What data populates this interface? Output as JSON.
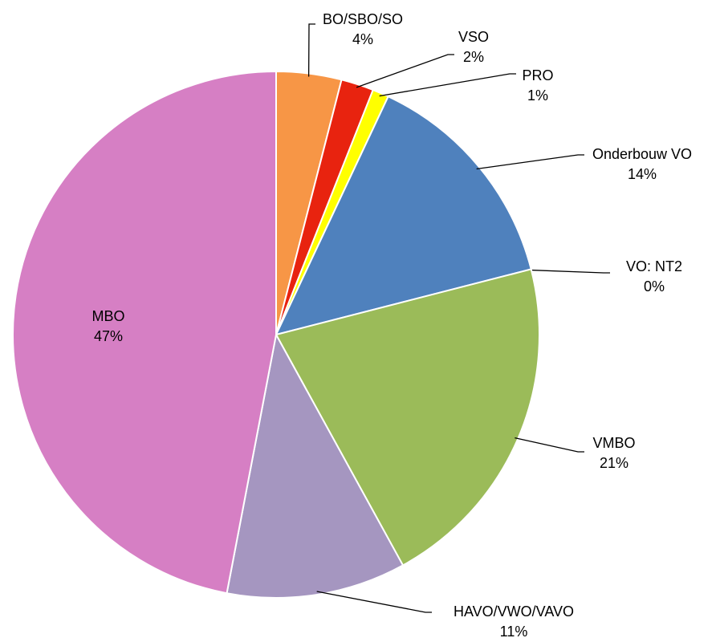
{
  "chart_data": {
    "type": "pie",
    "categories": [
      "BO/SBO/SO",
      "VSO",
      "PRO",
      "Onderbouw VO",
      "VO: NT2",
      "VMBO",
      "HAVO/VWO/VAVO",
      "MBO"
    ],
    "values": [
      4,
      2,
      1,
      14,
      0,
      21,
      11,
      47
    ],
    "value_labels": [
      "4%",
      "2%",
      "1%",
      "14%",
      "0%",
      "21%",
      "11%",
      "47%"
    ],
    "colors": [
      "#f79646",
      "#e8230f",
      "#ffff00",
      "#4f81bd",
      "#8064a2",
      "#9bbb59",
      "#a596c0",
      "#d67fc4"
    ]
  }
}
